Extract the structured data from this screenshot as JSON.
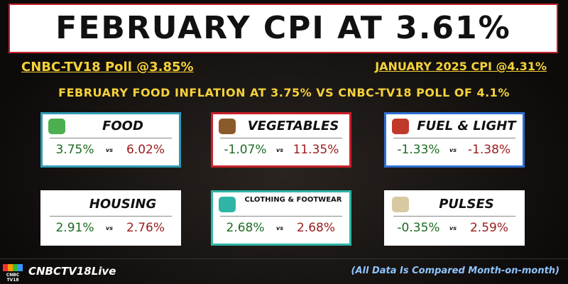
{
  "header": {
    "title": "FEBRUARY CPI AT 3.61%",
    "poll": "CNBC-TV18 Poll @3.85%",
    "previous": "JANUARY 2025 CPI @4.31%",
    "subtitle": "FEBRUARY FOOD INFLATION AT 3.75% VS CNBC-TV18 POLL OF 4.1%"
  },
  "separator": "vs",
  "cards": [
    {
      "label": "FOOD",
      "current": "3.75%",
      "previous": "6.02%"
    },
    {
      "label": "VEGETABLES",
      "current": "-1.07%",
      "previous": "11.35%"
    },
    {
      "label": "FUEL & LIGHT",
      "current": "-1.33%",
      "previous": "-1.38%"
    },
    {
      "label": "HOUSING",
      "current": "2.91%",
      "previous": "2.76%"
    },
    {
      "label": "CLOTHING & FOOTWEAR",
      "current": "2.68%",
      "previous": "2.68%"
    },
    {
      "label": "PULSES",
      "current": "-0.35%",
      "previous": "2.59%"
    }
  ],
  "footer": {
    "logo": "CNBC TV18",
    "handle": "CNBCTV18Live",
    "note": "(All Data Is Compared Month-on-month)"
  }
}
